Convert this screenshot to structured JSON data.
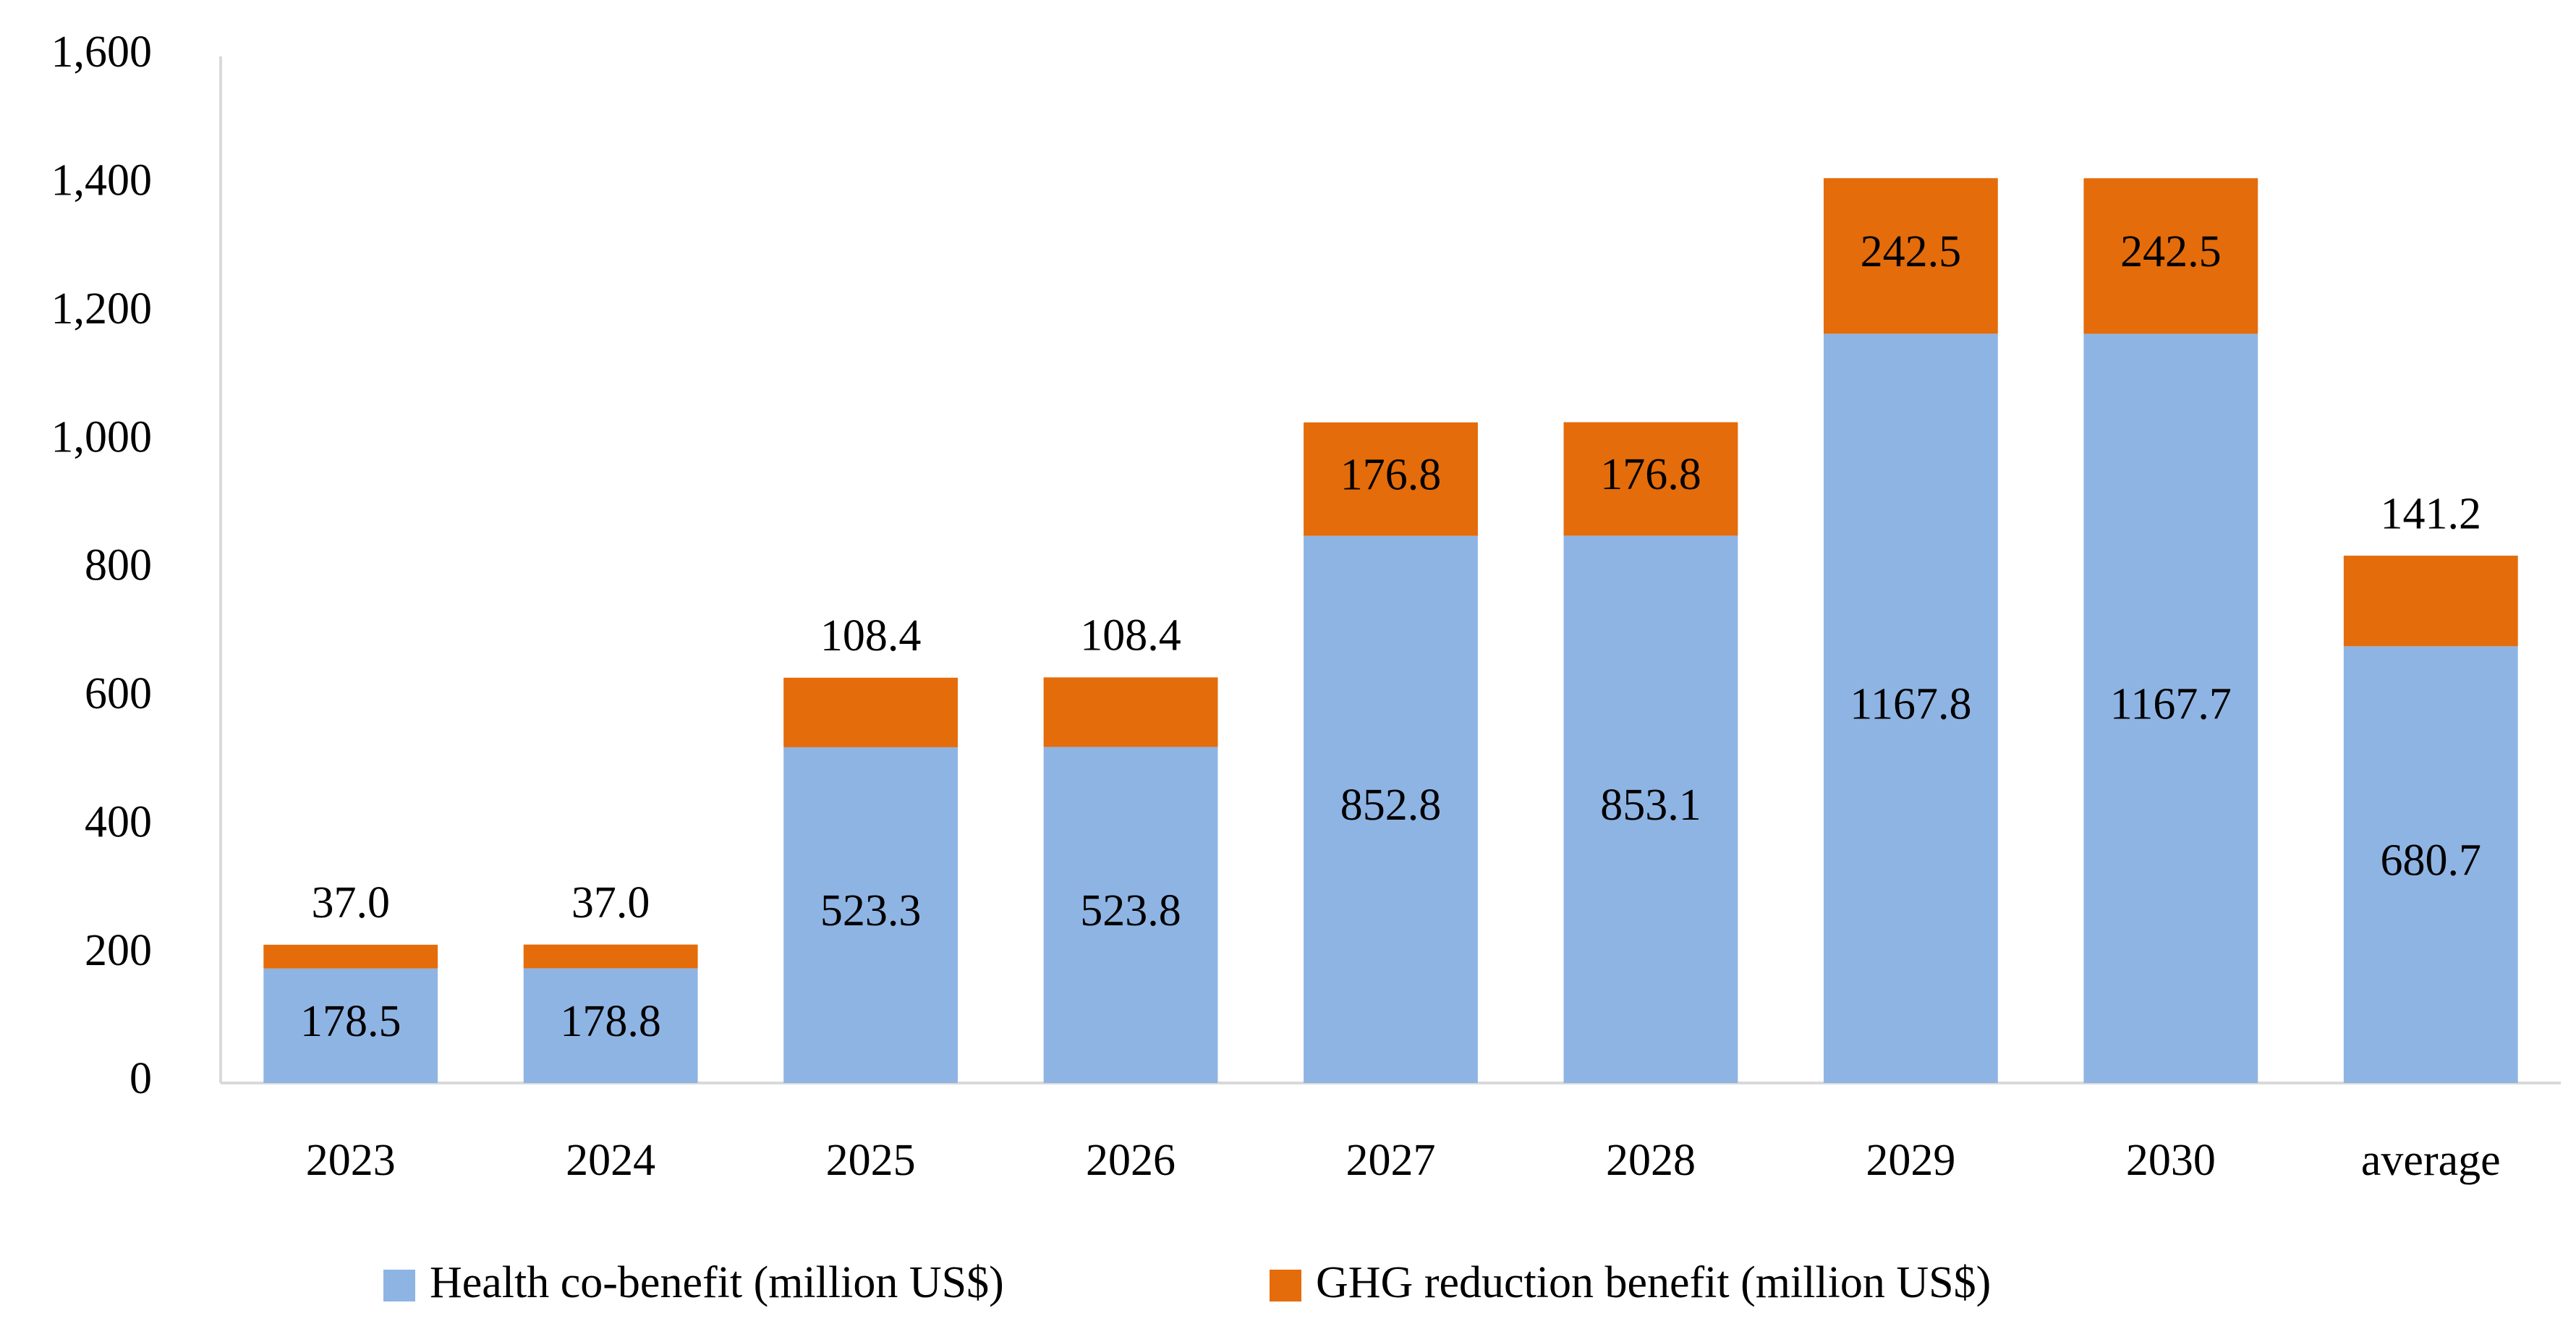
{
  "chart_data": {
    "type": "bar",
    "stacked": true,
    "categories": [
      "2023",
      "2024",
      "2025",
      "2026",
      "2027",
      "2028",
      "2029",
      "2030",
      "average"
    ],
    "series": [
      {
        "name": "Health co-benefit (million US$)",
        "color": "#8EB4E3",
        "values": [
          178.5,
          178.8,
          523.3,
          523.8,
          852.8,
          853.1,
          1167.8,
          1167.7,
          680.7
        ],
        "labels": [
          "178.5",
          "178.8",
          "523.3",
          "523.8",
          "852.8",
          "853.1",
          "1167.8",
          "1167.7",
          "680.7"
        ]
      },
      {
        "name": "GHG reduction benefit (million US$)",
        "color": "#E46C0A",
        "values": [
          37.0,
          37.0,
          108.4,
          108.4,
          176.8,
          176.8,
          242.5,
          242.5,
          141.2
        ],
        "labels": [
          "37.0",
          "37.0",
          "108.4",
          "108.4",
          "176.8",
          "176.8",
          "242.5",
          "242.5",
          "141.2"
        ]
      }
    ],
    "ylim": [
      0,
      1600
    ],
    "yticks": [
      0,
      200,
      400,
      600,
      800,
      1000,
      1200,
      1400,
      1600
    ],
    "ytick_labels": [
      "0",
      "200",
      "400",
      "600",
      "800",
      "1,000",
      "1,200",
      "1,400",
      "1,600"
    ],
    "title": "",
    "xlabel": "",
    "ylabel": "",
    "grid": false,
    "legend_position": "bottom"
  }
}
